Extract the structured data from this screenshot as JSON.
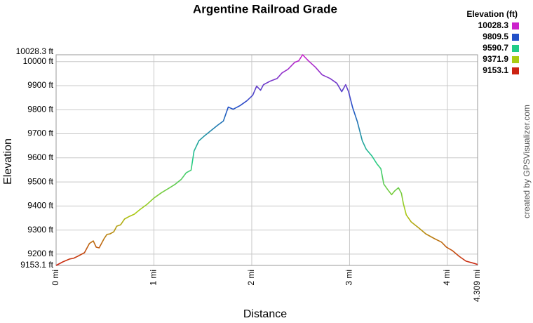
{
  "chart_data": {
    "type": "line",
    "title": "Argentine Railroad Grade",
    "xlabel": "Distance",
    "ylabel": "Elevation",
    "credit": "created by GPSVisualizer.com",
    "x": [
      0,
      0.07,
      0.14,
      0.18,
      0.22,
      0.29,
      0.34,
      0.38,
      0.41,
      0.44,
      0.49,
      0.52,
      0.55,
      0.59,
      0.62,
      0.66,
      0.7,
      0.75,
      0.8,
      0.86,
      0.93,
      1.0,
      1.08,
      1.15,
      1.22,
      1.28,
      1.33,
      1.38,
      1.41,
      1.46,
      1.51,
      1.58,
      1.65,
      1.71,
      1.74,
      1.76,
      1.81,
      1.88,
      1.95,
      2.01,
      2.05,
      2.09,
      2.12,
      2.19,
      2.26,
      2.31,
      2.37,
      2.44,
      2.48,
      2.52,
      2.58,
      2.65,
      2.72,
      2.8,
      2.87,
      2.92,
      2.96,
      2.99,
      3.03,
      3.08,
      3.13,
      3.17,
      3.23,
      3.28,
      3.32,
      3.35,
      3.39,
      3.43,
      3.46,
      3.5,
      3.53,
      3.55,
      3.58,
      3.63,
      3.71,
      3.78,
      3.87,
      3.94,
      3.99,
      4.05,
      4.12,
      4.19,
      4.27,
      4.309
    ],
    "values": [
      9153.1,
      9168,
      9180,
      9183,
      9191,
      9206,
      9244,
      9255,
      9229,
      9226,
      9264,
      9282,
      9284,
      9293,
      9316,
      9322,
      9346,
      9357,
      9366,
      9386,
      9407,
      9433,
      9456,
      9473,
      9491,
      9511,
      9538,
      9549,
      9628,
      9671,
      9689,
      9712,
      9735,
      9753,
      9788,
      9811,
      9802,
      9817,
      9837,
      9860,
      9898,
      9881,
      9904,
      9919,
      9930,
      9953,
      9968,
      9997,
      10003,
      10028.3,
      10003,
      9977,
      9945,
      9930,
      9910,
      9875,
      9904,
      9875,
      9811,
      9750,
      9671,
      9636,
      9607,
      9575,
      9555,
      9491,
      9468,
      9447,
      9462,
      9476,
      9453,
      9410,
      9363,
      9334,
      9308,
      9284,
      9264,
      9250,
      9229,
      9215,
      9191,
      9171,
      9162,
      9157
    ],
    "xlim": [
      0,
      4.309
    ],
    "ylim": [
      9153.1,
      10028.3
    ],
    "xticks": [
      {
        "value": 0,
        "label": "0 mi"
      },
      {
        "value": 1,
        "label": "1 mi"
      },
      {
        "value": 2,
        "label": "2 mi"
      },
      {
        "value": 3,
        "label": "3 mi"
      },
      {
        "value": 4,
        "label": "4 mi"
      },
      {
        "value": 4.309,
        "label": "4.309 mi"
      }
    ],
    "yticks": [
      {
        "value": 9153.1,
        "label": "9153.1 ft"
      },
      {
        "value": 9200,
        "label": "9200 ft"
      },
      {
        "value": 9300,
        "label": "9300 ft"
      },
      {
        "value": 9400,
        "label": "9400 ft"
      },
      {
        "value": 9500,
        "label": "9500 ft"
      },
      {
        "value": 9600,
        "label": "9600 ft"
      },
      {
        "value": 9700,
        "label": "9700 ft"
      },
      {
        "value": 9800,
        "label": "9800 ft"
      },
      {
        "value": 9900,
        "label": "9900 ft"
      },
      {
        "value": 10000,
        "label": "10000 ft"
      },
      {
        "value": 10028.3,
        "label": "10028.3 ft"
      }
    ],
    "grid": true,
    "legend": {
      "title": "Elevation (ft)",
      "items": [
        {
          "value": 10028.3,
          "color": "#cc22cc"
        },
        {
          "value": 9809.5,
          "color": "#2250c8"
        },
        {
          "value": 9590.7,
          "color": "#22cc88"
        },
        {
          "value": 9371.9,
          "color": "#aacc11"
        },
        {
          "value": 9153.1,
          "color": "#cc2211"
        }
      ]
    }
  }
}
